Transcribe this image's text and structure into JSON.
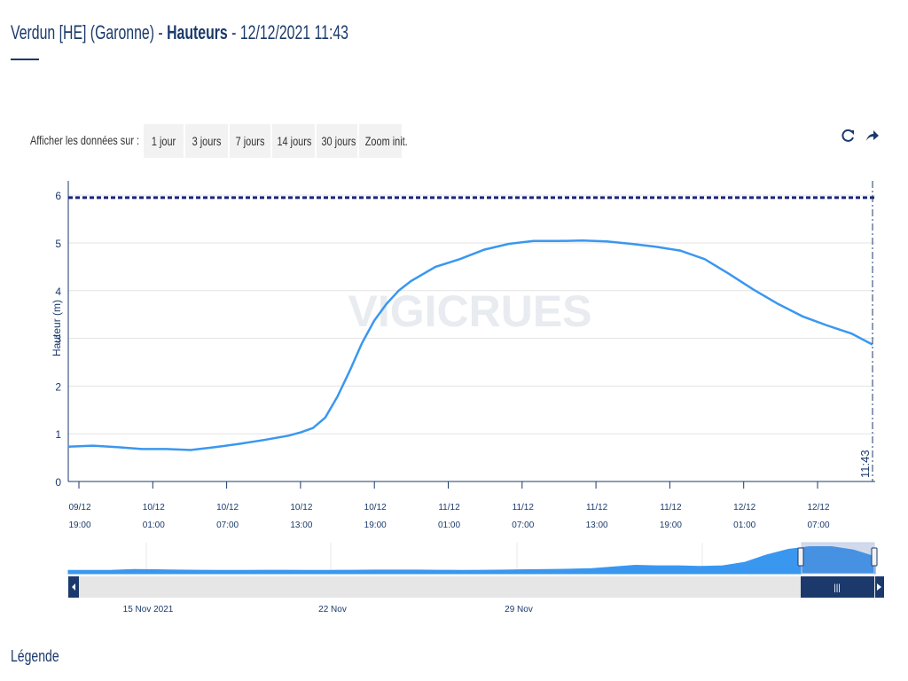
{
  "header": {
    "station": "Verdun [HE] (Garonne) - ",
    "variable": "Hauteurs",
    "datetime": " - 12/12/2021 11:43"
  },
  "controls": {
    "label": "Afficher les données sur :",
    "buttons": [
      "1 jour",
      "3 jours",
      "7 jours",
      "14 jours",
      "30 jours",
      "Zoom init."
    ],
    "reload_icon": "reload-icon",
    "share_icon": "share-icon"
  },
  "watermark": "VIGICRUES",
  "legend_title": "Légende",
  "colors": {
    "series": "#3a97f0",
    "threshold": "#1a237e",
    "axis": "#1b3a6b",
    "navigator": "#3a97f0"
  },
  "chart_data": {
    "type": "line",
    "ylabel": "Hauteur (m)",
    "ylim": [
      0,
      6.3
    ],
    "yticks": [
      "0",
      "1",
      "2",
      "3",
      "4",
      "5",
      "6"
    ],
    "xlim": [
      "2021-12-09T18:00",
      "2021-12-12T11:43"
    ],
    "xticks": [
      {
        "date": "09/12",
        "time": "19:00"
      },
      {
        "date": "10/12",
        "time": "01:00"
      },
      {
        "date": "10/12",
        "time": "07:00"
      },
      {
        "date": "10/12",
        "time": "13:00"
      },
      {
        "date": "10/12",
        "time": "19:00"
      },
      {
        "date": "11/12",
        "time": "01:00"
      },
      {
        "date": "11/12",
        "time": "07:00"
      },
      {
        "date": "11/12",
        "time": "13:00"
      },
      {
        "date": "11/12",
        "time": "19:00"
      },
      {
        "date": "12/12",
        "time": "01:00"
      },
      {
        "date": "12/12",
        "time": "07:00"
      }
    ],
    "threshold": 5.95,
    "current_time_label": "11:43",
    "series": [
      {
        "x": [
          "2021-12-09T18:00",
          "2021-12-09T20:00",
          "2021-12-09T22:00",
          "2021-12-10T00:00",
          "2021-12-10T02:00",
          "2021-12-10T04:00",
          "2021-12-10T06:00",
          "2021-12-10T08:00",
          "2021-12-10T10:00",
          "2021-12-10T12:00",
          "2021-12-10T13:00",
          "2021-12-10T14:00",
          "2021-12-10T15:00",
          "2021-12-10T16:00",
          "2021-12-10T17:00",
          "2021-12-10T18:00",
          "2021-12-10T19:00",
          "2021-12-10T20:00",
          "2021-12-10T21:00",
          "2021-12-10T22:00",
          "2021-12-11T00:00",
          "2021-12-11T02:00",
          "2021-12-11T04:00",
          "2021-12-11T06:00",
          "2021-12-11T08:00",
          "2021-12-11T10:00",
          "2021-12-11T12:00",
          "2021-12-11T14:00",
          "2021-12-11T16:00",
          "2021-12-11T18:00",
          "2021-12-11T20:00",
          "2021-12-11T22:00",
          "2021-12-12T00:00",
          "2021-12-12T02:00",
          "2021-12-12T04:00",
          "2021-12-12T06:00",
          "2021-12-12T08:00",
          "2021-12-12T10:00",
          "2021-12-12T11:43"
        ],
        "values": [
          0.73,
          0.75,
          0.72,
          0.68,
          0.68,
          0.66,
          0.72,
          0.79,
          0.87,
          0.96,
          1.03,
          1.12,
          1.34,
          1.78,
          2.32,
          2.9,
          3.37,
          3.72,
          4.0,
          4.2,
          4.5,
          4.66,
          4.86,
          4.98,
          5.04,
          5.04,
          5.05,
          5.03,
          4.98,
          4.92,
          4.84,
          4.66,
          4.35,
          4.02,
          3.72,
          3.46,
          3.27,
          3.1,
          2.87
        ]
      }
    ],
    "navigator": {
      "labels": [
        "15 Nov 2021",
        "22 Nov",
        "29 Nov"
      ],
      "values": [
        0.6,
        0.6,
        0.62,
        0.75,
        0.7,
        0.65,
        0.62,
        0.6,
        0.6,
        0.62,
        0.62,
        0.6,
        0.6,
        0.62,
        0.65,
        0.65,
        0.65,
        0.62,
        0.6,
        0.62,
        0.65,
        0.7,
        0.75,
        0.8,
        0.9,
        1.2,
        1.5,
        1.4,
        1.4,
        1.3,
        1.4,
        2.0,
        3.3,
        4.3,
        4.8,
        4.8,
        4.2,
        3.0
      ]
    }
  }
}
